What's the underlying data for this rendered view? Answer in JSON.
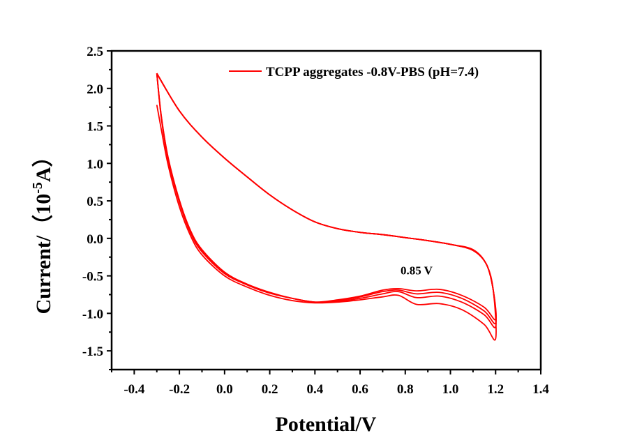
{
  "chart_data": {
    "type": "line",
    "title": "",
    "xlabel": "Potential/V",
    "ylabel": "Current/（10",
    "ylabel_exp": "-5",
    "ylabel_unit": "A）",
    "xlim": [
      -0.5,
      1.4
    ],
    "ylim": [
      -1.75,
      2.5
    ],
    "xticks": [
      -0.4,
      -0.2,
      0.0,
      0.2,
      0.4,
      0.6,
      0.8,
      1.0,
      1.2,
      1.4
    ],
    "xtick_labels": [
      "-0.4",
      "-0.2",
      "0.0",
      "0.2",
      "0.4",
      "0.6",
      "0.8",
      "1.0",
      "1.2",
      "1.4"
    ],
    "yticks": [
      -1.5,
      -1.0,
      -0.5,
      0.0,
      0.5,
      1.0,
      1.5,
      2.0,
      2.5
    ],
    "ytick_labels": [
      "-1.5",
      "-1.0",
      "-0.5",
      "0.0",
      "0.5",
      "1.0",
      "1.5",
      "2.0",
      "2.5"
    ],
    "grid": false,
    "legend_position": "top-right",
    "annotation": {
      "text": "0.85 V",
      "x": 0.85,
      "y": -0.48
    },
    "color": "#ff0000",
    "series": [
      {
        "name": "TCPP aggregates -0.8V-PBS (pH=7.4)",
        "cycles": [
          [
            [
              -0.3,
              1.78
            ],
            [
              -0.28,
              1.45
            ],
            [
              -0.25,
              0.98
            ],
            [
              -0.2,
              0.42
            ],
            [
              -0.15,
              0.03
            ],
            [
              -0.1,
              -0.22
            ],
            [
              0.0,
              -0.5
            ],
            [
              0.1,
              -0.65
            ],
            [
              0.2,
              -0.76
            ],
            [
              0.3,
              -0.83
            ],
            [
              0.4,
              -0.86
            ],
            [
              0.5,
              -0.85
            ],
            [
              0.6,
              -0.82
            ],
            [
              0.7,
              -0.78
            ],
            [
              0.77,
              -0.76
            ],
            [
              0.85,
              -0.88
            ],
            [
              0.95,
              -0.87
            ],
            [
              1.05,
              -0.95
            ],
            [
              1.15,
              -1.15
            ],
            [
              1.2,
              -1.34
            ],
            [
              1.19,
              -0.7
            ],
            [
              1.16,
              -0.35
            ],
            [
              1.1,
              -0.16
            ],
            [
              1.0,
              -0.08
            ],
            [
              0.9,
              -0.03
            ],
            [
              0.8,
              0.01
            ],
            [
              0.7,
              0.05
            ],
            [
              0.6,
              0.08
            ],
            [
              0.5,
              0.13
            ],
            [
              0.4,
              0.22
            ],
            [
              0.3,
              0.38
            ],
            [
              0.2,
              0.58
            ],
            [
              0.1,
              0.82
            ],
            [
              0.0,
              1.07
            ],
            [
              -0.1,
              1.35
            ],
            [
              -0.2,
              1.7
            ],
            [
              -0.3,
              2.2
            ]
          ],
          [
            [
              -0.3,
              2.2
            ],
            [
              -0.28,
              1.6
            ],
            [
              -0.25,
              1.05
            ],
            [
              -0.2,
              0.48
            ],
            [
              -0.15,
              0.07
            ],
            [
              -0.1,
              -0.18
            ],
            [
              0.0,
              -0.47
            ],
            [
              0.1,
              -0.62
            ],
            [
              0.2,
              -0.73
            ],
            [
              0.3,
              -0.8
            ],
            [
              0.4,
              -0.85
            ],
            [
              0.5,
              -0.84
            ],
            [
              0.6,
              -0.8
            ],
            [
              0.7,
              -0.74
            ],
            [
              0.77,
              -0.71
            ],
            [
              0.85,
              -0.79
            ],
            [
              0.95,
              -0.77
            ],
            [
              1.05,
              -0.85
            ],
            [
              1.15,
              -1.02
            ],
            [
              1.2,
              -1.18
            ],
            [
              1.19,
              -0.7
            ],
            [
              1.16,
              -0.35
            ],
            [
              1.1,
              -0.16
            ],
            [
              1.0,
              -0.08
            ],
            [
              0.9,
              -0.03
            ],
            [
              0.8,
              0.01
            ],
            [
              0.7,
              0.05
            ],
            [
              0.6,
              0.08
            ],
            [
              0.5,
              0.13
            ],
            [
              0.4,
              0.22
            ],
            [
              0.3,
              0.38
            ],
            [
              0.2,
              0.58
            ],
            [
              0.1,
              0.82
            ],
            [
              0.0,
              1.07
            ],
            [
              -0.1,
              1.35
            ],
            [
              -0.2,
              1.7
            ],
            [
              -0.3,
              2.2
            ]
          ],
          [
            [
              -0.3,
              2.2
            ],
            [
              -0.28,
              1.62
            ],
            [
              -0.25,
              1.07
            ],
            [
              -0.2,
              0.5
            ],
            [
              -0.15,
              0.09
            ],
            [
              -0.1,
              -0.16
            ],
            [
              0.0,
              -0.46
            ],
            [
              0.1,
              -0.62
            ],
            [
              0.2,
              -0.73
            ],
            [
              0.3,
              -0.8
            ],
            [
              0.4,
              -0.85
            ],
            [
              0.5,
              -0.83
            ],
            [
              0.6,
              -0.78
            ],
            [
              0.7,
              -0.71
            ],
            [
              0.77,
              -0.69
            ],
            [
              0.85,
              -0.74
            ],
            [
              0.95,
              -0.72
            ],
            [
              1.05,
              -0.8
            ],
            [
              1.15,
              -0.97
            ],
            [
              1.2,
              -1.13
            ],
            [
              1.19,
              -0.7
            ],
            [
              1.16,
              -0.35
            ],
            [
              1.1,
              -0.16
            ],
            [
              1.0,
              -0.08
            ],
            [
              0.9,
              -0.03
            ],
            [
              0.8,
              0.01
            ],
            [
              0.7,
              0.05
            ],
            [
              0.6,
              0.08
            ],
            [
              0.5,
              0.13
            ],
            [
              0.4,
              0.22
            ],
            [
              0.3,
              0.38
            ],
            [
              0.2,
              0.58
            ],
            [
              0.1,
              0.82
            ],
            [
              0.0,
              1.07
            ],
            [
              -0.1,
              1.35
            ],
            [
              -0.2,
              1.7
            ],
            [
              -0.3,
              2.2
            ]
          ],
          [
            [
              -0.3,
              2.2
            ],
            [
              -0.28,
              1.63
            ],
            [
              -0.25,
              1.08
            ],
            [
              -0.2,
              0.51
            ],
            [
              -0.15,
              0.1
            ],
            [
              -0.1,
              -0.15
            ],
            [
              0.0,
              -0.45
            ],
            [
              0.1,
              -0.61
            ],
            [
              0.2,
              -0.72
            ],
            [
              0.3,
              -0.8
            ],
            [
              0.4,
              -0.85
            ],
            [
              0.5,
              -0.82
            ],
            [
              0.6,
              -0.77
            ],
            [
              0.7,
              -0.69
            ],
            [
              0.77,
              -0.67
            ],
            [
              0.85,
              -0.7
            ],
            [
              0.95,
              -0.68
            ],
            [
              1.05,
              -0.76
            ],
            [
              1.15,
              -0.92
            ],
            [
              1.2,
              -1.08
            ],
            [
              1.19,
              -0.7
            ],
            [
              1.16,
              -0.35
            ],
            [
              1.1,
              -0.15
            ],
            [
              1.0,
              -0.08
            ],
            [
              0.9,
              -0.03
            ],
            [
              0.8,
              0.01
            ],
            [
              0.7,
              0.05
            ],
            [
              0.6,
              0.08
            ],
            [
              0.5,
              0.13
            ],
            [
              0.4,
              0.22
            ],
            [
              0.3,
              0.38
            ],
            [
              0.2,
              0.58
            ],
            [
              0.1,
              0.82
            ],
            [
              0.0,
              1.07
            ],
            [
              -0.1,
              1.35
            ],
            [
              -0.2,
              1.7
            ],
            [
              -0.3,
              2.2
            ]
          ]
        ]
      }
    ]
  }
}
